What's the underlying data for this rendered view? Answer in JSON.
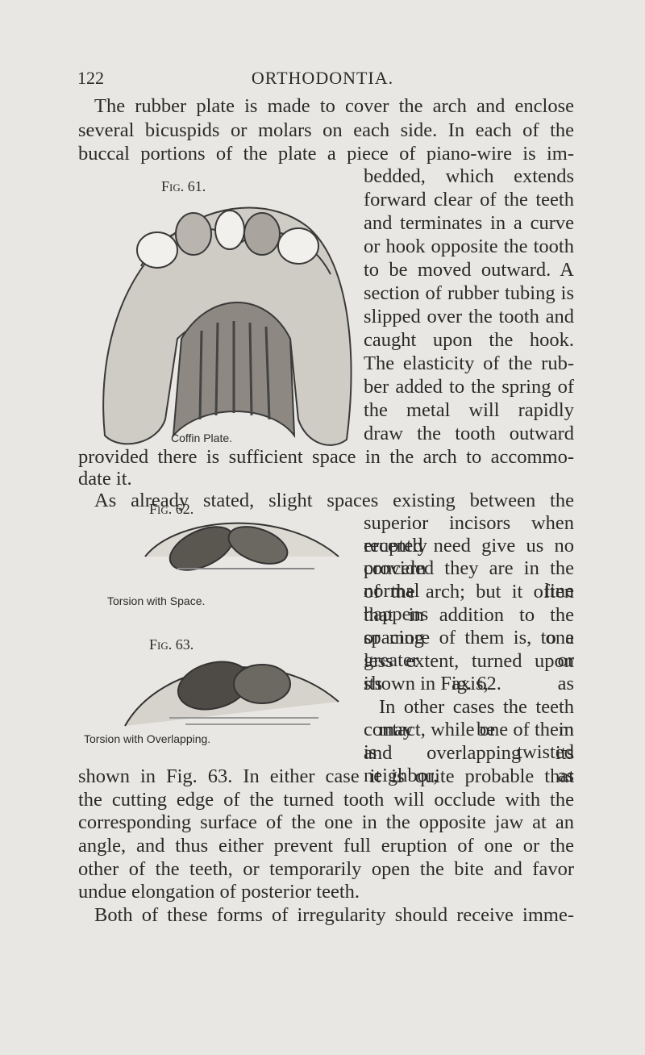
{
  "header": {
    "page_number": "122",
    "running_title": "ORTHODONTIA."
  },
  "paragraphs": [
    {
      "lines": [
        "The rubber plate is made to cover the arch and enclose",
        "several bicuspids or molars on each side. In each of the",
        "buccal portions of the plate a piece of piano-wire is im-",
        "bedded, which extends",
        "forward clear of the teeth",
        "and terminates in a curve",
        "or hook opposite the tooth",
        "to be moved outward. A",
        "section of rubber tubing is",
        "slipped over the tooth and",
        "caught upon the hook.",
        "The elasticity of the rub-",
        "ber added to the spring of",
        "the metal will rapidly",
        "draw the tooth outward",
        "provided there is sufficient space in the arch to accommo-",
        "date it."
      ]
    },
    {
      "lines": [
        "As already stated, slight spaces existing between the",
        "superior incisors when recently",
        "erupted need give us no concern",
        "provided they are in the normal line",
        "of the arch; but it often happens",
        "that in addition to the spacing one",
        "or more of them is, to a greater or",
        "less extent, turned upon its axis, as",
        "shown in Fig. 62."
      ]
    },
    {
      "lines": [
        "In other cases the teeth may be in",
        "contact, while one of them is twisted",
        "and overlapping its neighbor, as",
        "shown in Fig. 63. In either case it is quite probable that",
        "the cutting edge of the turned tooth will occlude with the",
        "corresponding surface of the one in the opposite jaw at an",
        "angle, and thus either prevent full eruption of one or the",
        "other of the teeth, or temporarily open the bite and favor",
        "undue elongation of posterior teeth."
      ]
    },
    {
      "lines": [
        "Both of these forms of irregularity should receive imme-"
      ]
    }
  ],
  "figures": [
    {
      "label": "Fig. 61.",
      "caption": "Coffin Plate."
    },
    {
      "label": "Fig. 62.",
      "caption": "Torsion with Space."
    },
    {
      "label": "Fig. 63.",
      "caption": "Torsion with Overlapping."
    }
  ]
}
